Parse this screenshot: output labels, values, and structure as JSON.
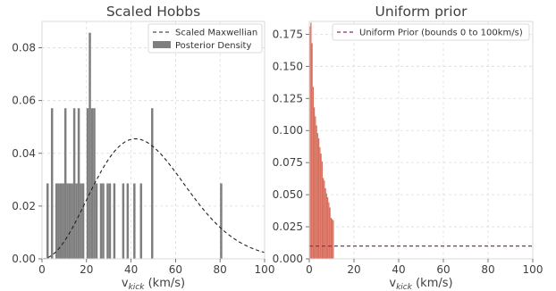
{
  "chart_data": [
    {
      "type": "bar",
      "title": "Scaled Hobbs",
      "xlabel_main": "v",
      "xlabel_sub": "kick",
      "xlabel_unit": " (km/s)",
      "ylabel": "",
      "xlim": [
        0,
        100
      ],
      "ylim": [
        0,
        0.09
      ],
      "xticks": [
        "0",
        "20",
        "40",
        "60",
        "80",
        "100"
      ],
      "yticks": [
        "0.00",
        "0.02",
        "0.04",
        "0.06",
        "0.08"
      ],
      "grid": true,
      "legend_position": "top-right",
      "colors": {
        "bars": "#7f7f7f",
        "curve": "#222222"
      },
      "series": [
        {
          "name": "Scaled Maxwellian",
          "kind": "line",
          "style": "dashed",
          "distribution": "maxwellian",
          "mode_x": 42,
          "peak_y": 0.0455
        },
        {
          "name": "Posterior Density",
          "kind": "histogram",
          "bin_width": 1,
          "bins": [
            {
              "x": 2,
              "y": 0.0286
            },
            {
              "x": 4,
              "y": 0.0571
            },
            {
              "x": 6,
              "y": 0.0286
            },
            {
              "x": 7,
              "y": 0.0286
            },
            {
              "x": 8,
              "y": 0.0286
            },
            {
              "x": 9,
              "y": 0.0286
            },
            {
              "x": 10,
              "y": 0.0571
            },
            {
              "x": 11,
              "y": 0.0286
            },
            {
              "x": 12,
              "y": 0.0286
            },
            {
              "x": 13,
              "y": 0.0286
            },
            {
              "x": 14,
              "y": 0.0571
            },
            {
              "x": 15,
              "y": 0.0286
            },
            {
              "x": 16,
              "y": 0.0571
            },
            {
              "x": 17,
              "y": 0.0286
            },
            {
              "x": 18,
              "y": 0.0286
            },
            {
              "x": 20,
              "y": 0.0571
            },
            {
              "x": 21,
              "y": 0.0857
            },
            {
              "x": 22,
              "y": 0.0571
            },
            {
              "x": 23,
              "y": 0.0571
            },
            {
              "x": 24,
              "y": 0.0286
            },
            {
              "x": 26,
              "y": 0.0286
            },
            {
              "x": 27,
              "y": 0.0286
            },
            {
              "x": 29,
              "y": 0.0286
            },
            {
              "x": 30,
              "y": 0.0286
            },
            {
              "x": 32,
              "y": 0.0286
            },
            {
              "x": 36,
              "y": 0.0286
            },
            {
              "x": 38,
              "y": 0.0286
            },
            {
              "x": 41,
              "y": 0.0286
            },
            {
              "x": 44,
              "y": 0.0286
            },
            {
              "x": 49,
              "y": 0.0571
            },
            {
              "x": 80,
              "y": 0.0286
            }
          ]
        }
      ]
    },
    {
      "type": "bar",
      "title": "Uniform prior",
      "xlabel_main": "v",
      "xlabel_sub": "kick",
      "xlabel_unit": " (km/s)",
      "ylabel": "",
      "xlim": [
        0,
        100
      ],
      "ylim": [
        0,
        0.185
      ],
      "xticks": [
        "0",
        "20",
        "40",
        "60",
        "80",
        "100"
      ],
      "yticks": [
        "0.000",
        "0.025",
        "0.050",
        "0.075",
        "0.100",
        "0.125",
        "0.150",
        "0.175"
      ],
      "grid": true,
      "legend_position": "top-right",
      "colors": {
        "bars": "#d9705f",
        "line": "#8b2a7a"
      },
      "series": [
        {
          "name": "Uniform Prior  (bounds 0 to 100km/s)",
          "kind": "line",
          "style": "dashed",
          "y": 0.01
        },
        {
          "name": "",
          "kind": "histogram",
          "bin_width": 0.5,
          "bins": [
            {
              "x": 0.0,
              "y": 0.181
            },
            {
              "x": 0.5,
              "y": 0.184
            },
            {
              "x": 1.0,
              "y": 0.168
            },
            {
              "x": 1.5,
              "y": 0.134
            },
            {
              "x": 2.0,
              "y": 0.118
            },
            {
              "x": 2.5,
              "y": 0.111
            },
            {
              "x": 3.0,
              "y": 0.104
            },
            {
              "x": 3.5,
              "y": 0.098
            },
            {
              "x": 4.0,
              "y": 0.094
            },
            {
              "x": 4.5,
              "y": 0.087
            },
            {
              "x": 5.0,
              "y": 0.082
            },
            {
              "x": 5.5,
              "y": 0.076
            },
            {
              "x": 6.0,
              "y": 0.063
            },
            {
              "x": 6.5,
              "y": 0.061
            },
            {
              "x": 7.0,
              "y": 0.055
            },
            {
              "x": 7.5,
              "y": 0.051
            },
            {
              "x": 8.0,
              "y": 0.048
            },
            {
              "x": 8.5,
              "y": 0.044
            },
            {
              "x": 9.0,
              "y": 0.04
            },
            {
              "x": 9.5,
              "y": 0.032
            },
            {
              "x": 10.0,
              "y": 0.031
            },
            {
              "x": 10.5,
              "y": 0.03
            }
          ]
        }
      ]
    }
  ]
}
